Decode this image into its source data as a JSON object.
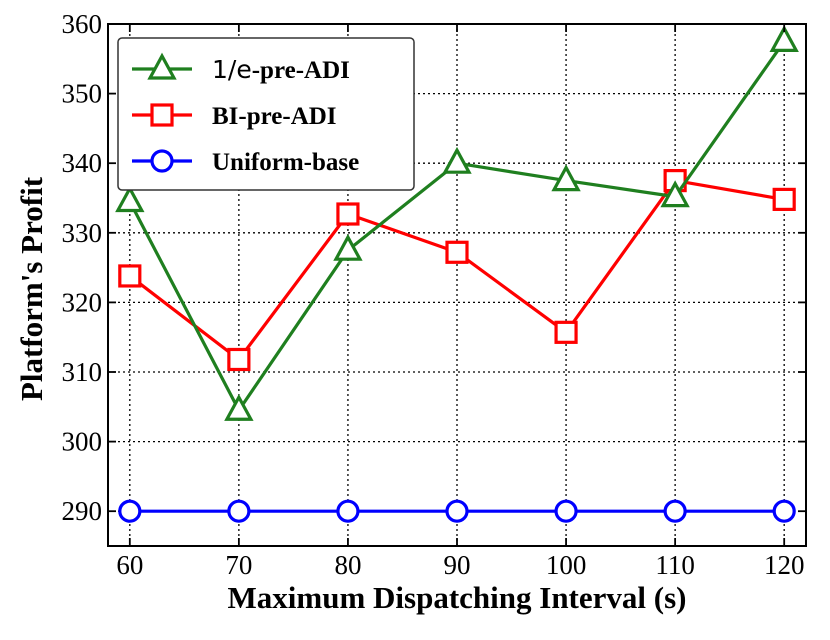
{
  "chart_data": {
    "type": "line",
    "title": "",
    "xlabel": "Maximum Dispatching Interval (s)",
    "ylabel": "Platform's Profit",
    "x": [
      60,
      70,
      80,
      90,
      100,
      110,
      120
    ],
    "x_tick_labels": [
      "60",
      "70",
      "80",
      "90",
      "100",
      "110",
      "120"
    ],
    "y_ticks": [
      290,
      300,
      310,
      320,
      330,
      340,
      350,
      360
    ],
    "y_tick_labels": [
      "290",
      "300",
      "310",
      "320",
      "330",
      "340",
      "350",
      "360"
    ],
    "xlim": [
      58,
      122
    ],
    "ylim": [
      285,
      360
    ],
    "grid": true,
    "legend_position": "top-left",
    "series": [
      {
        "name": "1/e-pre-ADI",
        "name_parts": {
          "italic_var": "1/e",
          "suffix": "-pre-ADI"
        },
        "color": "#1f7f1f",
        "marker": "triangle",
        "values": [
          334.5,
          304.5,
          327.5,
          340.0,
          337.5,
          335.2,
          357.5
        ]
      },
      {
        "name": "BI-pre-ADI",
        "color": "#ff0000",
        "marker": "square",
        "values": [
          323.8,
          311.8,
          332.7,
          327.2,
          315.7,
          337.5,
          334.8
        ]
      },
      {
        "name": "Uniform-base",
        "color": "#0000ff",
        "marker": "circle",
        "values": [
          290,
          290,
          290,
          290,
          290,
          290,
          290
        ]
      }
    ]
  }
}
